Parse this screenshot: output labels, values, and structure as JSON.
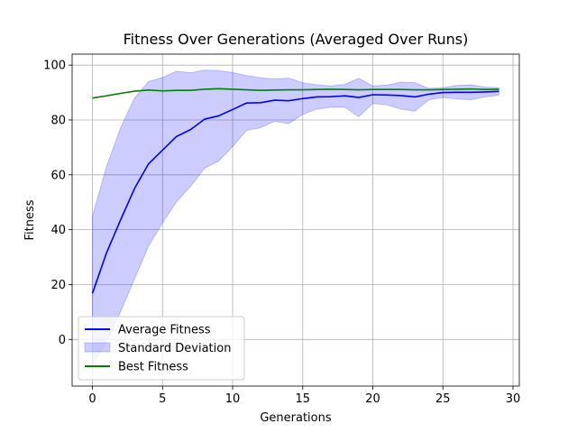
{
  "chart_data": {
    "type": "line",
    "title": "Fitness Over Generations (Averaged Over Runs)",
    "xlabel": "Generations",
    "ylabel": "Fitness",
    "xlim": [
      -1.45,
      30.45
    ],
    "ylim": [
      -17,
      104
    ],
    "xticks": [
      0,
      5,
      10,
      15,
      20,
      25,
      30
    ],
    "yticks": [
      0,
      20,
      40,
      60,
      80,
      100
    ],
    "grid": true,
    "legend_position": "lower-left",
    "x": [
      0,
      1,
      2,
      3,
      4,
      5,
      6,
      7,
      8,
      9,
      10,
      11,
      12,
      13,
      14,
      15,
      16,
      17,
      18,
      19,
      20,
      21,
      22,
      23,
      24,
      25,
      26,
      27,
      28,
      29
    ],
    "series": [
      {
        "name": "Average Fitness",
        "kind": "line",
        "color": "#0000ff",
        "values": [
          16.8,
          31.5,
          43.5,
          55.0,
          64.0,
          69.0,
          74.0,
          76.5,
          80.3,
          81.5,
          83.8,
          86.2,
          86.3,
          87.2,
          87.0,
          87.8,
          88.4,
          88.5,
          88.8,
          88.2,
          89.2,
          89.1,
          88.9,
          88.4,
          89.4,
          90.0,
          90.1,
          90.1,
          90.2,
          90.4
        ]
      },
      {
        "name": "Standard Deviation",
        "kind": "band",
        "color": "#0000ff",
        "opacity": 0.2,
        "upper": [
          45.0,
          63.0,
          77.0,
          88.0,
          94.0,
          95.5,
          97.8,
          97.2,
          98.2,
          98.0,
          97.3,
          96.2,
          95.4,
          94.9,
          95.3,
          93.6,
          92.8,
          92.4,
          93.0,
          95.2,
          92.4,
          92.7,
          93.8,
          93.6,
          91.5,
          91.8,
          92.6,
          92.8,
          92.0,
          91.8
        ],
        "lower": [
          -9.0,
          -1.0,
          10.0,
          22.0,
          34.0,
          42.5,
          50.2,
          55.8,
          62.4,
          65.0,
          70.3,
          76.2,
          77.2,
          79.5,
          78.7,
          82.0,
          84.0,
          84.6,
          84.6,
          81.2,
          86.0,
          85.5,
          84.0,
          83.2,
          87.3,
          88.2,
          87.6,
          87.4,
          88.4,
          89.0
        ]
      },
      {
        "name": "Best Fitness",
        "kind": "line",
        "color": "#008000",
        "values": [
          88.0,
          88.8,
          89.7,
          90.5,
          90.9,
          90.6,
          90.8,
          90.8,
          91.2,
          91.4,
          91.2,
          91.0,
          90.8,
          90.9,
          91.0,
          91.0,
          91.1,
          91.2,
          91.1,
          91.0,
          91.1,
          91.1,
          91.1,
          91.0,
          91.0,
          91.1,
          91.2,
          91.3,
          91.1,
          91.2
        ]
      }
    ],
    "legend": [
      "Average Fitness",
      "Standard Deviation",
      "Best Fitness"
    ]
  }
}
